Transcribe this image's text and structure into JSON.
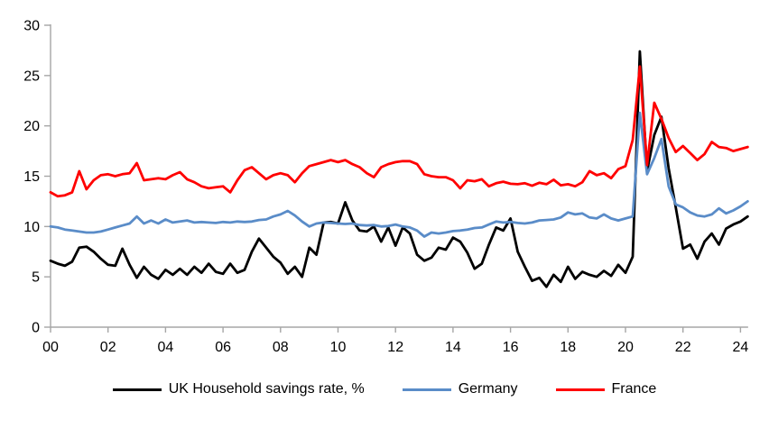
{
  "chart_data": {
    "type": "line",
    "title": "",
    "xlabel": "",
    "ylabel": "",
    "grid": false,
    "legend_position": "bottom",
    "axis_color": "#A6A6A6",
    "x_axis": {
      "start_year": 2000,
      "step_years": 0.25,
      "tick_every_years": 2,
      "tick_labels": [
        "00",
        "02",
        "04",
        "06",
        "08",
        "10",
        "12",
        "14",
        "16",
        "18",
        "20",
        "22",
        "24"
      ]
    },
    "y_axis": {
      "min": 0,
      "max": 30,
      "tick_interval": 5,
      "tick_labels": [
        "0",
        "5",
        "10",
        "15",
        "20",
        "25",
        "30"
      ]
    },
    "series": [
      {
        "name": "UK Household savings rate, %",
        "color": "#000000",
        "values": [
          6.6,
          6.3,
          6.1,
          6.5,
          7.9,
          8.0,
          7.5,
          6.8,
          6.2,
          6.1,
          7.8,
          6.2,
          4.9,
          6.0,
          5.2,
          4.8,
          5.7,
          5.2,
          5.8,
          5.2,
          6.0,
          5.4,
          6.3,
          5.5,
          5.3,
          6.3,
          5.4,
          5.7,
          7.5,
          8.8,
          7.9,
          7.0,
          6.4,
          5.3,
          6.0,
          5.0,
          7.9,
          7.2,
          10.4,
          10.45,
          10.3,
          12.4,
          10.6,
          9.6,
          9.5,
          10.0,
          8.5,
          9.9,
          8.1,
          9.9,
          9.3,
          7.2,
          6.6,
          6.9,
          7.9,
          7.7,
          8.9,
          8.5,
          7.4,
          5.8,
          6.3,
          8.2,
          9.9,
          9.6,
          10.8,
          7.5,
          6.0,
          4.6,
          4.9,
          4.0,
          5.2,
          4.5,
          6.0,
          4.8,
          5.5,
          5.2,
          5.0,
          5.6,
          5.1,
          6.2,
          5.4,
          7.0,
          27.4,
          15.5,
          19.1,
          20.9,
          15.8,
          11.9,
          7.8,
          8.2,
          6.8,
          8.5,
          9.3,
          8.2,
          9.8,
          10.2,
          10.5,
          11.0
        ]
      },
      {
        "name": "Germany",
        "color": "#5A8CC8",
        "values": [
          10.0,
          9.9,
          9.7,
          9.6,
          9.5,
          9.4,
          9.4,
          9.5,
          9.7,
          9.9,
          10.1,
          10.3,
          11.0,
          10.3,
          10.6,
          10.3,
          10.7,
          10.4,
          10.5,
          10.6,
          10.4,
          10.45,
          10.4,
          10.35,
          10.45,
          10.4,
          10.5,
          10.45,
          10.5,
          10.65,
          10.7,
          11.0,
          11.2,
          11.55,
          11.1,
          10.5,
          10.0,
          10.3,
          10.4,
          10.35,
          10.3,
          10.25,
          10.3,
          10.15,
          10.1,
          10.15,
          10.0,
          10.05,
          10.2,
          10.0,
          9.9,
          9.6,
          9.0,
          9.4,
          9.3,
          9.4,
          9.55,
          9.6,
          9.7,
          9.85,
          9.9,
          10.2,
          10.5,
          10.4,
          10.45,
          10.35,
          10.3,
          10.4,
          10.6,
          10.65,
          10.7,
          10.9,
          11.4,
          11.2,
          11.3,
          10.9,
          10.8,
          11.2,
          10.8,
          10.6,
          10.8,
          11.0,
          21.3,
          15.2,
          16.8,
          18.7,
          14.0,
          12.2,
          11.9,
          11.4,
          11.1,
          11.0,
          11.2,
          11.8,
          11.3,
          11.6,
          12.0,
          12.5
        ]
      },
      {
        "name": "France",
        "color": "#FF0000",
        "values": [
          13.4,
          13.0,
          13.1,
          13.4,
          15.5,
          13.7,
          14.6,
          15.1,
          15.2,
          15.0,
          15.2,
          15.3,
          16.3,
          14.6,
          14.7,
          14.8,
          14.7,
          15.1,
          15.4,
          14.7,
          14.4,
          14.0,
          13.8,
          13.9,
          14.0,
          13.4,
          14.6,
          15.6,
          15.9,
          15.3,
          14.7,
          15.1,
          15.3,
          15.1,
          14.4,
          15.3,
          16.0,
          16.2,
          16.4,
          16.6,
          16.4,
          16.6,
          16.2,
          15.9,
          15.3,
          14.9,
          15.9,
          16.2,
          16.4,
          16.5,
          16.5,
          16.2,
          15.2,
          15.0,
          14.9,
          14.9,
          14.6,
          13.8,
          14.6,
          14.5,
          14.7,
          14.0,
          14.3,
          14.45,
          14.25,
          14.2,
          14.3,
          14.05,
          14.35,
          14.2,
          14.65,
          14.1,
          14.2,
          14.0,
          14.4,
          15.5,
          15.1,
          15.3,
          14.8,
          15.7,
          16.0,
          18.6,
          25.9,
          16.1,
          22.3,
          20.7,
          18.8,
          17.4,
          18.0,
          17.3,
          16.6,
          17.2,
          18.4,
          17.9,
          17.8,
          17.5,
          17.7,
          17.9
        ]
      }
    ]
  }
}
